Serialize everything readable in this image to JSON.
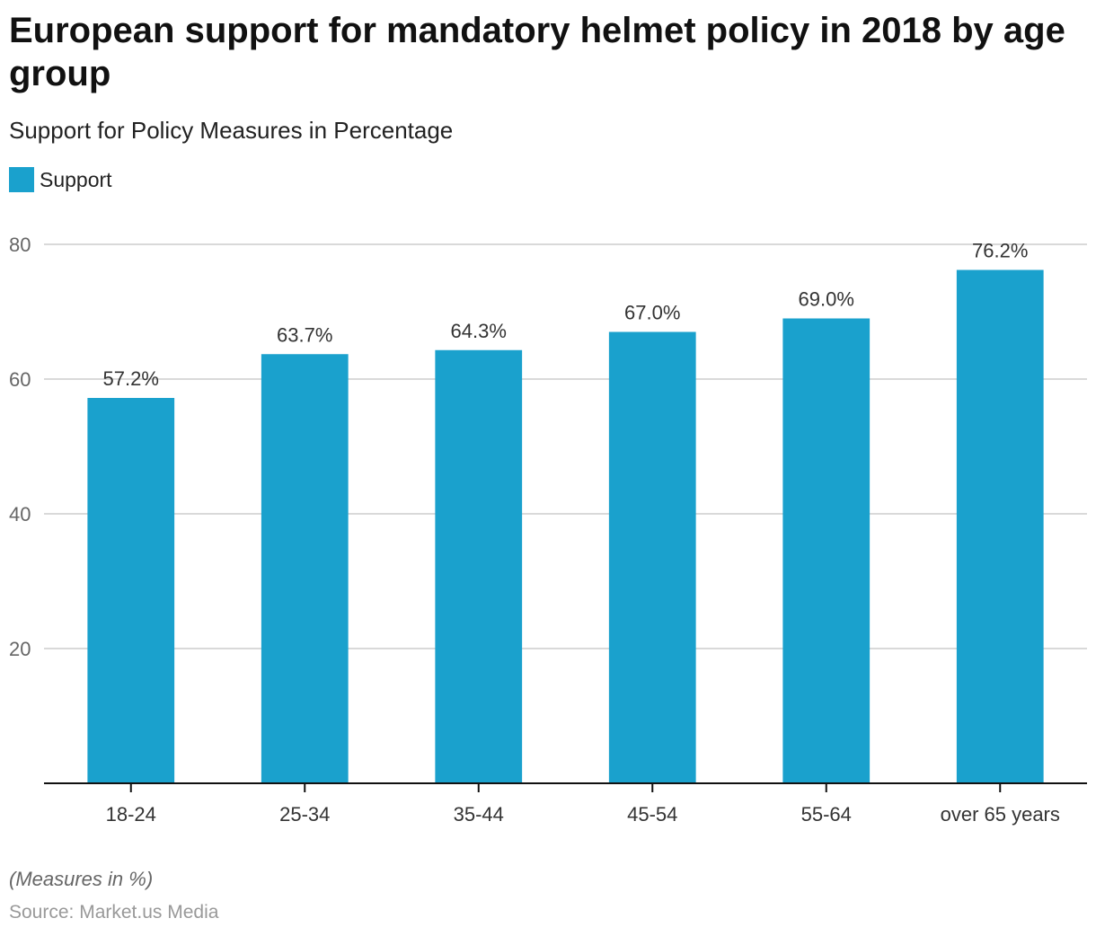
{
  "title": "European support for mandatory helmet policy in 2018 by age group",
  "subtitle": "Support for Policy Measures in Percentage",
  "legend": [
    {
      "label": "Support",
      "color": "#1aa1cd"
    }
  ],
  "footer": {
    "note": "(Measures in %)",
    "source": "Source: Market.us Media"
  },
  "chart_data": {
    "type": "bar",
    "title": "European support for mandatory helmet policy in 2018 by age group",
    "subtitle": "Support for Policy Measures in Percentage",
    "xlabel": "",
    "ylabel": "",
    "categories": [
      "18-24",
      "25-34",
      "35-44",
      "45-54",
      "55-64",
      "over 65 years"
    ],
    "series": [
      {
        "name": "Support",
        "color": "#1aa1cd",
        "values": [
          57.2,
          63.7,
          64.3,
          67.0,
          69.0,
          76.2
        ]
      }
    ],
    "data_labels": [
      "57.2%",
      "63.7%",
      "64.3%",
      "67.0%",
      "69.0%",
      "76.2%"
    ],
    "yticks": [
      20,
      40,
      60,
      80
    ],
    "ylim": [
      0,
      80
    ],
    "grid": true,
    "legend_position": "top-left"
  }
}
